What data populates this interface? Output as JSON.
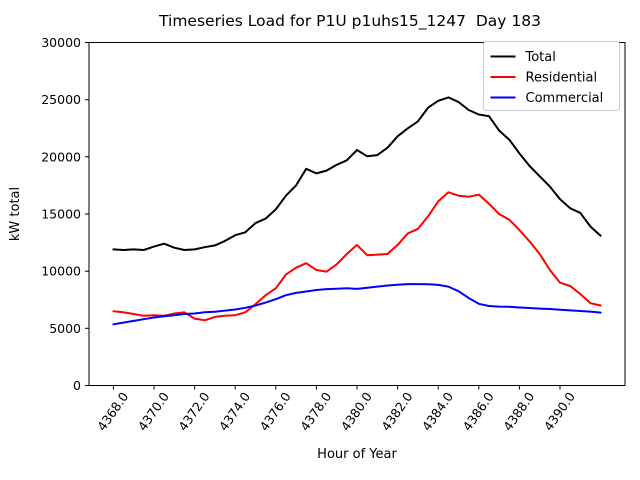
{
  "chart_data": {
    "type": "line",
    "title": "Timeseries Load for P1U p1uhs15_1247  Day 183",
    "xlabel": "Hour of Year",
    "ylabel": "kW total",
    "xlim": [
      4366.8,
      4393.2
    ],
    "ylim": [
      0,
      30000
    ],
    "grid": false,
    "background": "#ffffff",
    "axis_color": "#000000",
    "xticks": {
      "values": [
        4368,
        4370,
        4372,
        4374,
        4376,
        4378,
        4380,
        4382,
        4384,
        4386,
        4388,
        4390
      ],
      "labels": [
        "4368.0",
        "4370.0",
        "4372.0",
        "4374.0",
        "4376.0",
        "4378.0",
        "4380.0",
        "4382.0",
        "4384.0",
        "4386.0",
        "4388.0",
        "4390.0"
      ],
      "rotation_deg": 55
    },
    "yticks": {
      "values": [
        0,
        5000,
        10000,
        15000,
        20000,
        25000,
        30000
      ],
      "labels": [
        "0",
        "5000",
        "10000",
        "15000",
        "20000",
        "25000",
        "30000"
      ]
    },
    "legend": {
      "position": "upper right",
      "border_color": "#cccccc",
      "fill_color": "#ffffff",
      "entries": [
        "Total",
        "Residential",
        "Commercial"
      ]
    },
    "x": [
      4368,
      4368.5,
      4369,
      4369.5,
      4370,
      4370.5,
      4371,
      4371.5,
      4372,
      4372.5,
      4373,
      4373.5,
      4374,
      4374.5,
      4375,
      4375.5,
      4376,
      4376.5,
      4377,
      4377.5,
      4378,
      4378.5,
      4379,
      4379.5,
      4380,
      4380.5,
      4381,
      4381.5,
      4382,
      4382.5,
      4383,
      4383.5,
      4384,
      4384.5,
      4385,
      4385.5,
      4386,
      4386.5,
      4387,
      4387.5,
      4388,
      4388.5,
      4389,
      4389.5,
      4390,
      4390.5,
      4391,
      4391.5,
      4392
    ],
    "series": [
      {
        "name": "Total",
        "color": "#000000",
        "values": [
          11900,
          11850,
          11900,
          11850,
          12150,
          12400,
          12050,
          11850,
          11900,
          12100,
          12250,
          12650,
          13150,
          13400,
          14200,
          14600,
          15400,
          16600,
          17500,
          18950,
          18550,
          18800,
          19300,
          19700,
          20600,
          20050,
          20150,
          20800,
          21800,
          22500,
          23100,
          24300,
          24900,
          25200,
          24800,
          24100,
          23700,
          23550,
          22300,
          21500,
          20300,
          19200,
          18300,
          17400,
          16300,
          15500,
          15100,
          13900,
          13100
        ]
      },
      {
        "name": "Residential",
        "color": "#ff0000",
        "values": [
          6500,
          6400,
          6250,
          6100,
          6150,
          6100,
          6300,
          6400,
          5850,
          5700,
          6000,
          6100,
          6150,
          6400,
          7100,
          7900,
          8500,
          9700,
          10300,
          10700,
          10100,
          9950,
          10600,
          11500,
          12300,
          11400,
          11450,
          11500,
          12300,
          13300,
          13700,
          14800,
          16100,
          16900,
          16600,
          16500,
          16700,
          15900,
          15000,
          14500,
          13600,
          12600,
          11500,
          10100,
          9000,
          8700,
          8000,
          7200,
          7000
        ]
      },
      {
        "name": "Commercial",
        "color": "#0000ff",
        "values": [
          5350,
          5500,
          5650,
          5800,
          5950,
          6050,
          6150,
          6250,
          6300,
          6400,
          6450,
          6550,
          6650,
          6800,
          7000,
          7250,
          7550,
          7900,
          8100,
          8220,
          8350,
          8430,
          8470,
          8510,
          8450,
          8550,
          8650,
          8750,
          8820,
          8870,
          8870,
          8850,
          8800,
          8650,
          8250,
          7650,
          7150,
          6950,
          6900,
          6880,
          6820,
          6780,
          6730,
          6690,
          6630,
          6570,
          6520,
          6460,
          6380
        ]
      }
    ]
  }
}
